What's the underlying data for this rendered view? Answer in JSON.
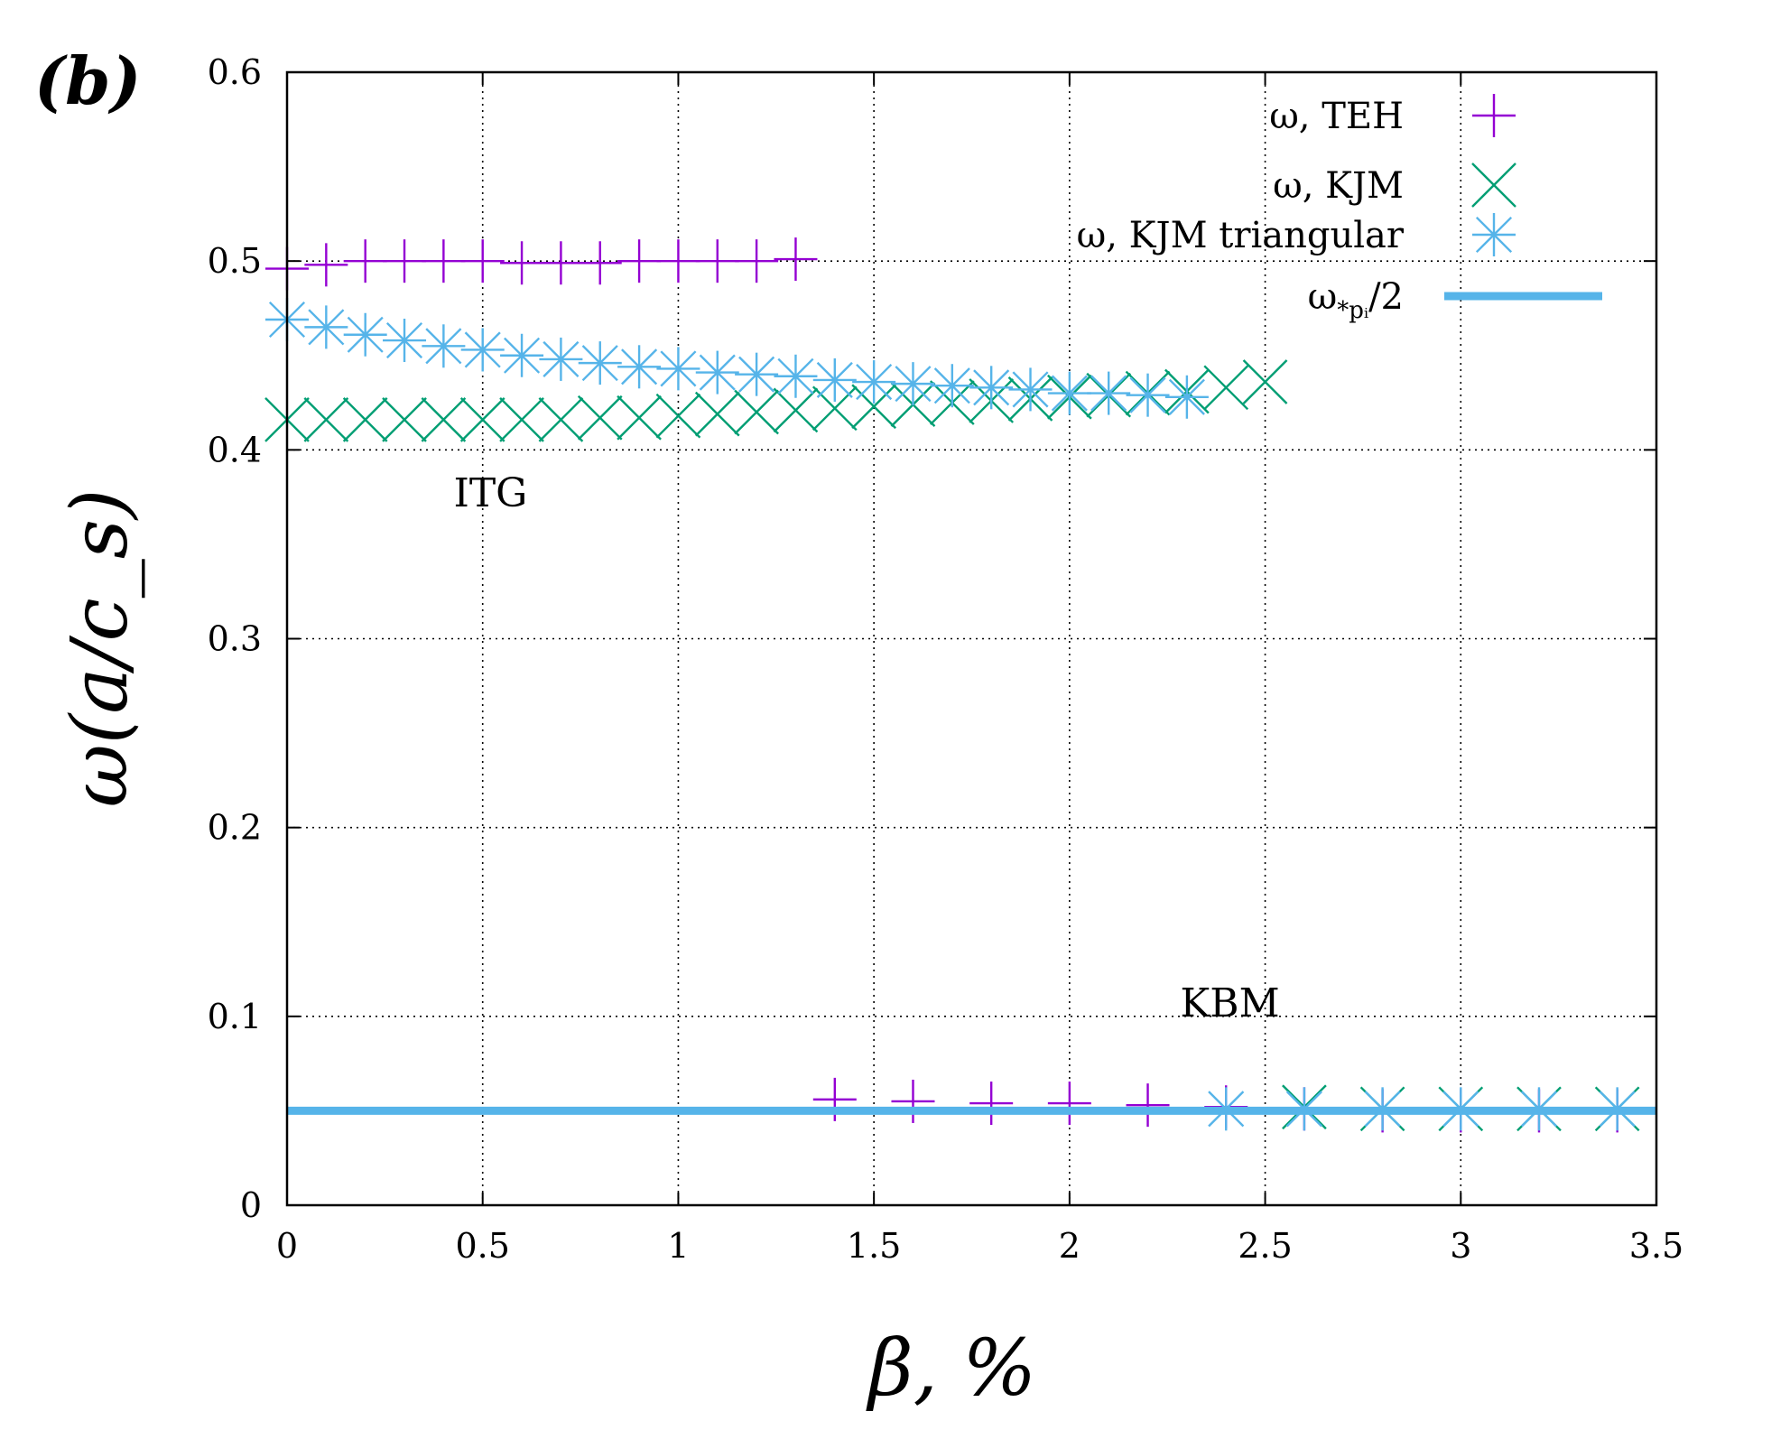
{
  "chart_data": {
    "type": "scatter",
    "panel_label": "(b)",
    "xlabel": "β, %",
    "ylabel": "ω(a/c_s)",
    "xlim": [
      0,
      3.5
    ],
    "ylim": [
      0,
      0.6
    ],
    "xticks": [
      0,
      0.5,
      1,
      1.5,
      2,
      2.5,
      3,
      3.5
    ],
    "yticks": [
      0,
      0.1,
      0.2,
      0.3,
      0.4,
      0.5,
      0.6
    ],
    "xtick_labels": [
      "0",
      "0.5",
      "1",
      "1.5",
      "2",
      "2.5",
      "3",
      "3.5"
    ],
    "ytick_labels": [
      "0",
      "0.1",
      "0.2",
      "0.3",
      "0.4",
      "0.5",
      "0.6"
    ],
    "grid": true,
    "legend_position": "top-right",
    "annotations": [
      {
        "text": "ITG",
        "x": 0.52,
        "y": 0.37
      },
      {
        "text": "KBM",
        "x": 2.41,
        "y": 0.1
      }
    ],
    "series": [
      {
        "name": "ω, TEH",
        "marker": "plus",
        "color": "#9400D3",
        "x": [
          0,
          0.1,
          0.2,
          0.3,
          0.4,
          0.5,
          0.6,
          0.7,
          0.8,
          0.9,
          1.0,
          1.1,
          1.2,
          1.3,
          1.4,
          1.6,
          1.8,
          2.0,
          2.2,
          2.4,
          2.6,
          2.8,
          3.0,
          3.2,
          3.4
        ],
        "y": [
          0.496,
          0.498,
          0.5,
          0.5,
          0.5,
          0.5,
          0.499,
          0.499,
          0.499,
          0.5,
          0.5,
          0.5,
          0.5,
          0.501,
          0.056,
          0.055,
          0.054,
          0.054,
          0.053,
          0.052,
          0.051,
          0.05,
          0.05,
          0.05,
          0.05
        ]
      },
      {
        "name": "ω, KJM",
        "marker": "cross",
        "color": "#009E73",
        "x": [
          0,
          0.1,
          0.2,
          0.3,
          0.4,
          0.5,
          0.6,
          0.7,
          0.8,
          0.9,
          1.0,
          1.1,
          1.2,
          1.3,
          1.4,
          1.5,
          1.6,
          1.7,
          1.8,
          1.9,
          2.0,
          2.1,
          2.2,
          2.3,
          2.4,
          2.5,
          2.6,
          2.8,
          3.0,
          3.2,
          3.4
        ],
        "y": [
          0.416,
          0.416,
          0.416,
          0.416,
          0.416,
          0.416,
          0.416,
          0.416,
          0.417,
          0.417,
          0.418,
          0.419,
          0.42,
          0.421,
          0.422,
          0.423,
          0.424,
          0.425,
          0.426,
          0.427,
          0.428,
          0.429,
          0.43,
          0.431,
          0.433,
          0.436,
          0.052,
          0.051,
          0.051,
          0.051,
          0.051
        ]
      },
      {
        "name": "ω, KJM triangular",
        "marker": "star",
        "color": "#56B4E9",
        "x": [
          0,
          0.1,
          0.2,
          0.3,
          0.4,
          0.5,
          0.6,
          0.7,
          0.8,
          0.9,
          1.0,
          1.1,
          1.2,
          1.3,
          1.4,
          1.5,
          1.6,
          1.7,
          1.8,
          1.9,
          2.0,
          2.1,
          2.2,
          2.3,
          2.4,
          2.6,
          2.8,
          3.0,
          3.2,
          3.4
        ],
        "y": [
          0.469,
          0.465,
          0.461,
          0.458,
          0.455,
          0.453,
          0.45,
          0.448,
          0.446,
          0.444,
          0.443,
          0.441,
          0.44,
          0.439,
          0.437,
          0.436,
          0.435,
          0.434,
          0.433,
          0.432,
          0.43,
          0.43,
          0.429,
          0.428,
          0.051,
          0.051,
          0.051,
          0.051,
          0.051,
          0.051
        ]
      },
      {
        "name": "ω_{*p_i}/2",
        "marker": "line",
        "color": "#56B4E9",
        "x": [
          0,
          3.5
        ],
        "y": [
          0.05,
          0.05
        ]
      }
    ]
  }
}
